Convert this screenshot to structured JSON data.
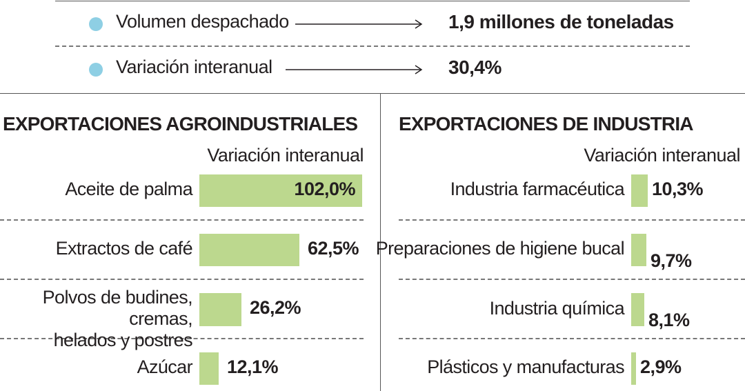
{
  "colors": {
    "dot": "#8ecfe4",
    "bar": "#bcd88e",
    "text": "#231f20"
  },
  "summary": [
    {
      "label": "Volumen despachado",
      "value": "1,9 millones de toneladas"
    },
    {
      "label": "Variación interanual",
      "value": "30,4%"
    }
  ],
  "chart_data": [
    {
      "type": "bar",
      "orientation": "horizontal",
      "title": "EXPORTACIONES AGROINDUSTRIALES",
      "value_header": "Variación interanual",
      "unit": "%",
      "categories": [
        "Aceite de palma",
        "Extractos de café",
        "Polvos de budines, cremas, helados y postres",
        "Azúcar"
      ],
      "category_lines": [
        [
          "Aceite de palma"
        ],
        [
          "Extractos de café"
        ],
        [
          "Polvos de budines, cremas,",
          "helados y postres"
        ],
        [
          "Azúcar"
        ]
      ],
      "values": [
        102.0,
        62.5,
        26.2,
        12.1
      ],
      "value_labels": [
        "102,0%",
        "62,5%",
        "26,2%",
        "12,1%"
      ],
      "xlim": [
        0,
        102.0
      ],
      "grid": false
    },
    {
      "type": "bar",
      "orientation": "horizontal",
      "title": "EXPORTACIONES DE INDUSTRIA",
      "value_header": "Variación interanual",
      "unit": "%",
      "categories": [
        "Industria farmacéutica",
        "Preparaciones de higiene bucal",
        "Industria química",
        "Plásticos y manufacturas"
      ],
      "category_lines": [
        [
          "Industria farmacéutica"
        ],
        [
          "Preparaciones de higiene bucal"
        ],
        [
          "Industria química"
        ],
        [
          "Plásticos y manufacturas"
        ]
      ],
      "values": [
        10.3,
        9.7,
        8.1,
        2.9
      ],
      "value_labels": [
        "10,3%",
        "9,7%",
        "8,1%",
        "2,9%"
      ],
      "xlim": [
        0,
        102.0
      ],
      "grid": false
    }
  ]
}
